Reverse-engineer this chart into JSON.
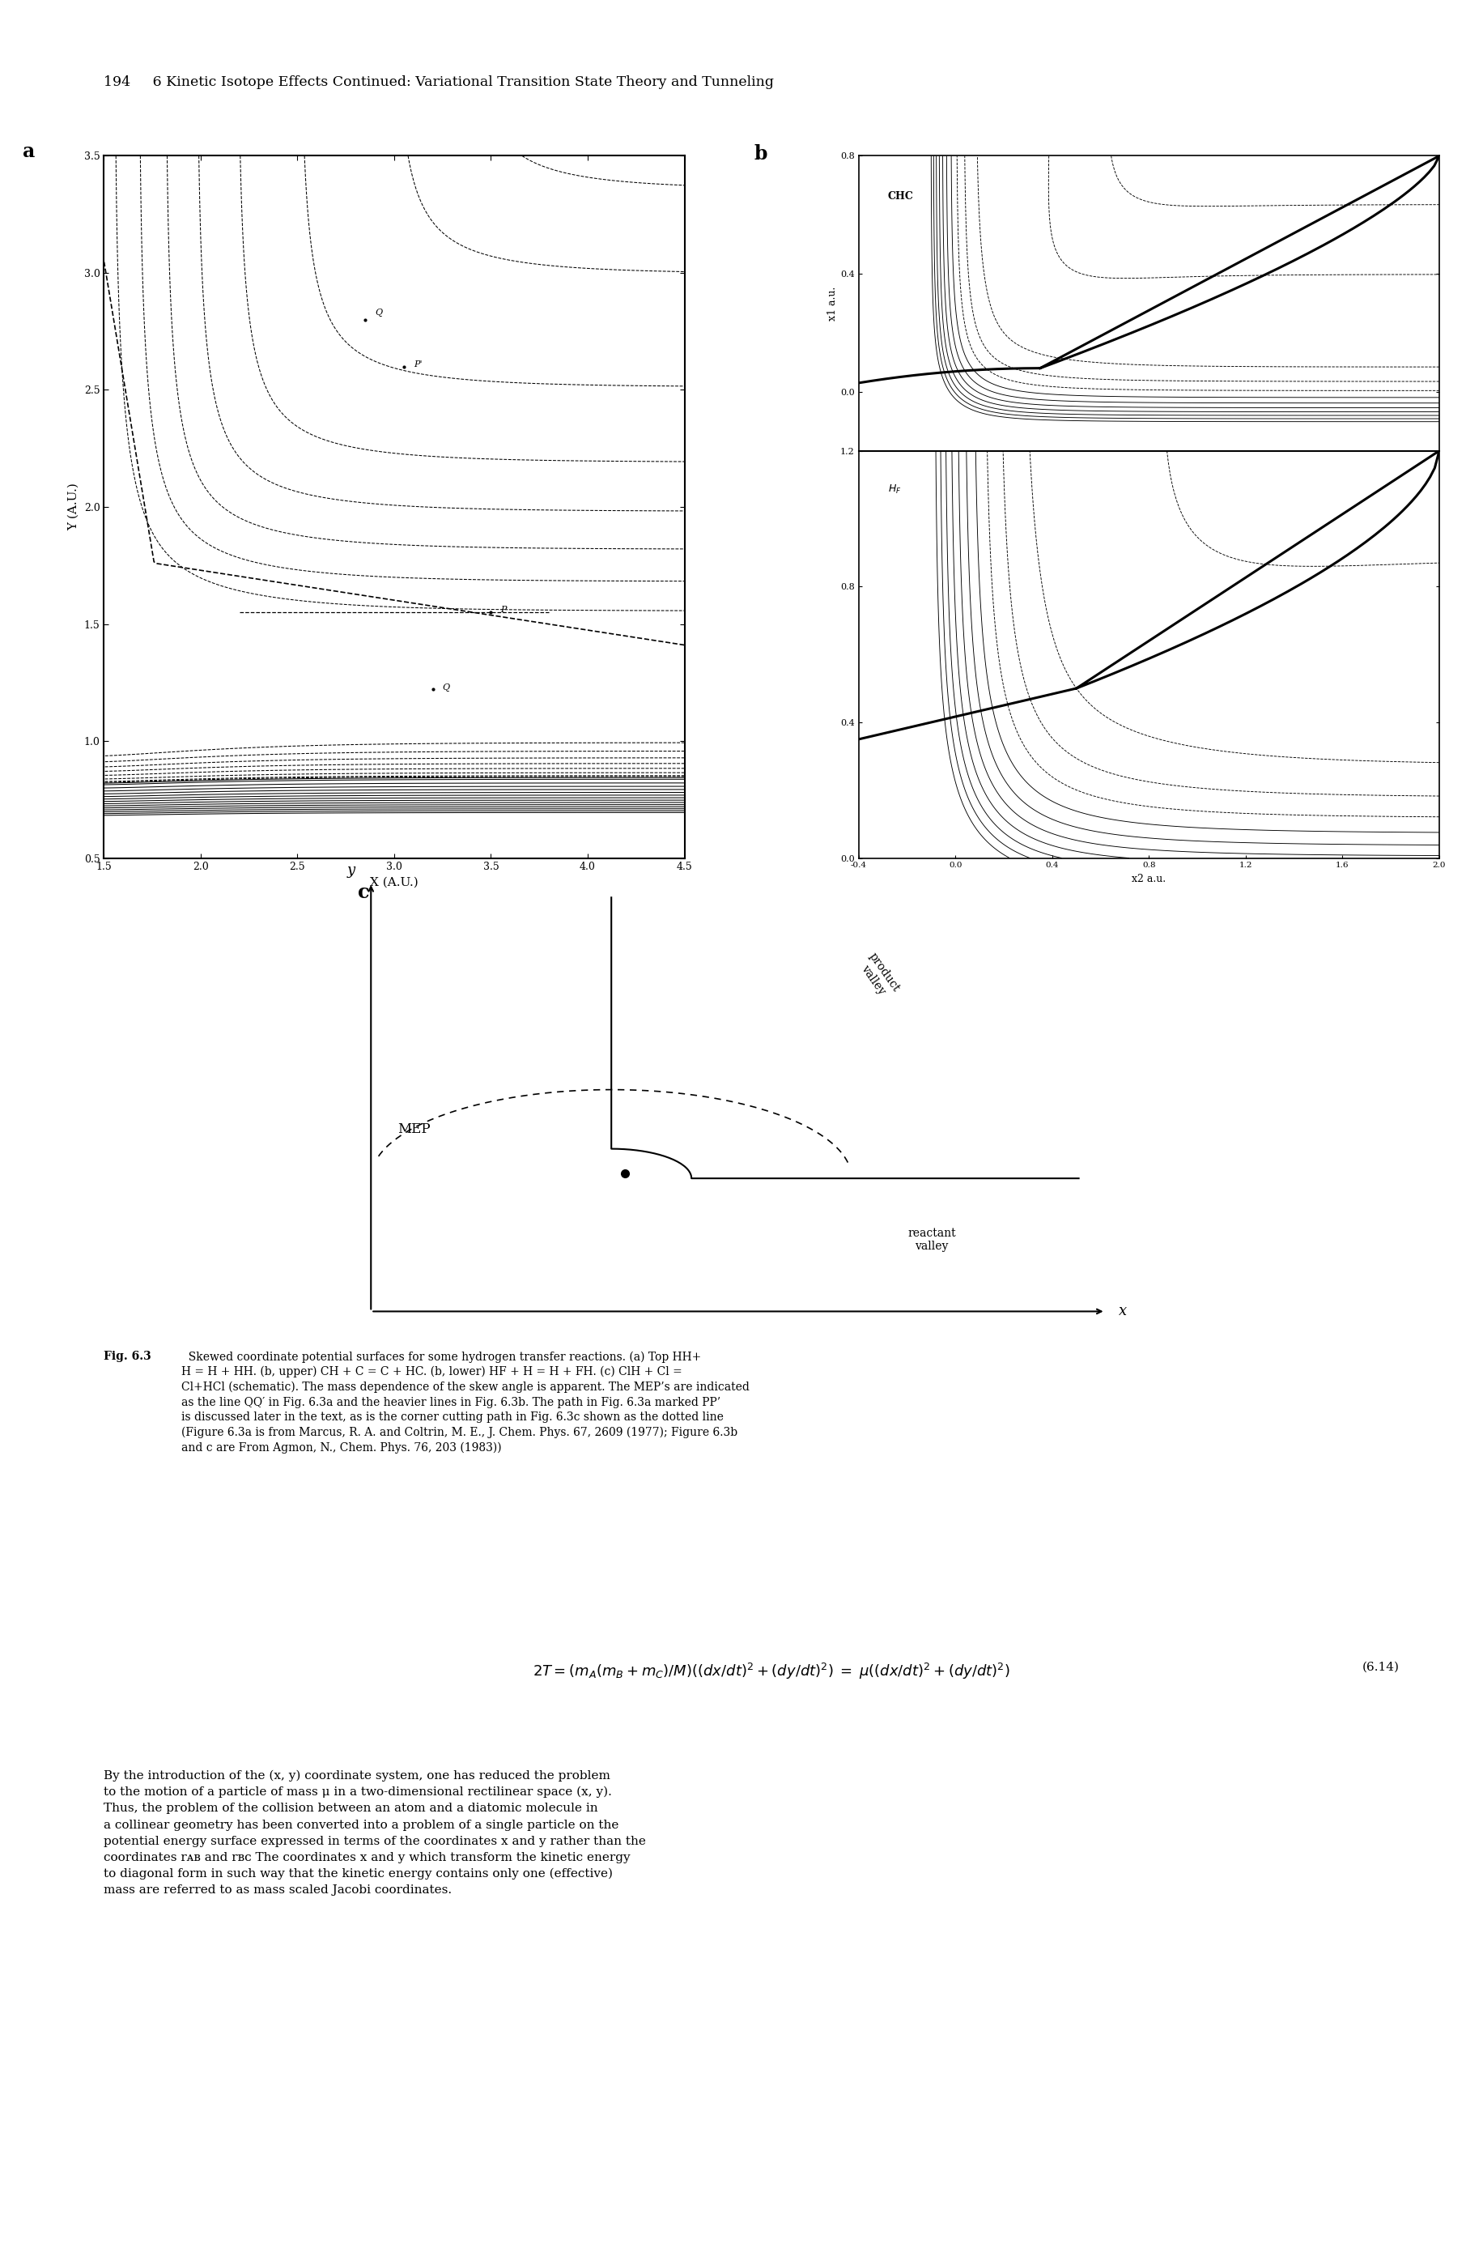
{
  "page_title": "194     6 Kinetic Isotope Effects Continued: Variational Transition State Theory and Tunneling",
  "panel_a_label": "a",
  "panel_b_label": "b",
  "panel_c_label": "c",
  "panel_a_xlabel": "X (A.U.)",
  "panel_a_ylabel": "Y (A.U.)",
  "panel_a_xlim": [
    1.5,
    4.5
  ],
  "panel_a_ylim": [
    0.5,
    3.5
  ],
  "panel_a_xticks": [
    1.5,
    2.0,
    2.5,
    3.0,
    3.5,
    4.0,
    4.5
  ],
  "panel_a_yticks": [
    0.5,
    1.0,
    1.5,
    2.0,
    2.5,
    3.0,
    3.5
  ],
  "panel_b_xlabel": "x2 a.u.",
  "panel_b_ylabel_upper": "x1 a.u.",
  "panel_b_xlim": [
    -0.4,
    2.0
  ],
  "panel_b_upper_ylim": [
    -0.2,
    0.8
  ],
  "panel_b_lower_ylim": [
    0.0,
    1.2
  ],
  "panel_b_xticks": [
    -0.4,
    0.0,
    0.4,
    0.8,
    1.2,
    1.6,
    2.0
  ],
  "panel_c_xlabel": "x",
  "panel_c_ylabel": "y",
  "caption_bold": "Fig. 6.3",
  "caption_rest": "  Skewed coordinate potential surfaces for some hydrogen transfer reactions. (a) Top HH+\nH = H + HH. (b, upper) CH + C = C + HC. (b, lower) HF + H = H + FH. (c) ClH + Cl =\nCl+HCl (schematic). The mass dependence of the skew angle is apparent. The MEP’s are indicated\nas the line QQ′ in Fig. 6.3a and the heavier lines in Fig. 6.3b. The path in Fig. 6.3a marked PP’\nis discussed later in the text, as is the corner cutting path in Fig. 6.3c shown as the dotted line\n(Figure 6.3a is from Marcus, R. A. and Coltrin, M. E., J. Chem. Phys. 67, 2609 (1977); Figure 6.3b\nand c are From Agmon, N., Chem. Phys. 76, 203 (1983))",
  "eq_number": "(6.14)",
  "eq_text_lines": [
    "By the introduction of the (x, y) coordinate system, one has reduced the problem",
    "to the motion of a particle of mass μ in a two-dimensional rectilinear space (x, y).",
    "Thus, the problem of the collision between an atom and a diatomic molecule in",
    "a collinear geometry has been converted into a problem of a single particle on the",
    "potential energy surface expressed in terms of the coordinates x and y rather than the",
    "coordinates rᴀʙ and rʙᴄ The coordinates x and y which transform the kinetic energy",
    "to diagonal form in such way that the kinetic energy contains only one (effective)",
    "mass are referred to as mass scaled Jacobi coordinates."
  ],
  "background_color": "#ffffff"
}
